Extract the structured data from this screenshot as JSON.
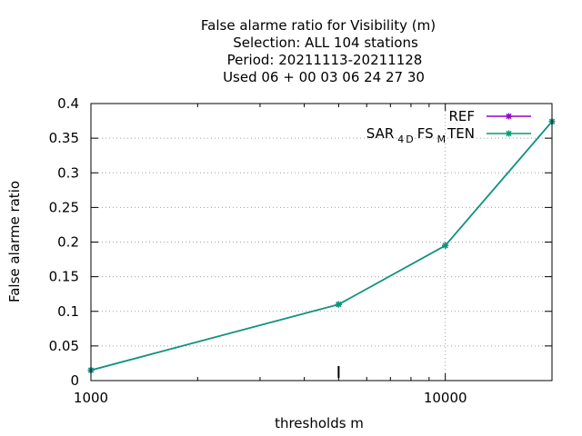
{
  "chart_data": {
    "type": "line",
    "title_lines": [
      "False alarme ratio  for Visibility (m)",
      "Selection: ALL    104 stations",
      "Period: 20211113-20211128",
      "Used  06 + 00 03 06 24 27 30"
    ],
    "xlabel": "thresholds m",
    "ylabel": "False alarme ratio",
    "x_scale": "log",
    "xlim": [
      1000,
      20000
    ],
    "ylim": [
      0,
      0.4
    ],
    "x_ticks": [
      {
        "value": 1000,
        "label": "1000"
      },
      {
        "value": 10000,
        "label": "10000"
      }
    ],
    "y_ticks": [
      {
        "value": 0,
        "label": "0"
      },
      {
        "value": 0.05,
        "label": "0.05"
      },
      {
        "value": 0.1,
        "label": "0.1"
      },
      {
        "value": 0.15,
        "label": "0.15"
      },
      {
        "value": 0.2,
        "label": "0.2"
      },
      {
        "value": 0.25,
        "label": "0.25"
      },
      {
        "value": 0.3,
        "label": "0.3"
      },
      {
        "value": 0.35,
        "label": "0.35"
      },
      {
        "value": 0.4,
        "label": "0.4"
      }
    ],
    "series": [
      {
        "name": "REF",
        "color": "#9400d3",
        "x": [
          1000,
          5000,
          10000,
          20000
        ],
        "values": [
          0.015,
          0.11,
          0.195,
          0.374
        ]
      },
      {
        "name": "SAR_4DFS_MTEN",
        "legend_parts": [
          "SAR",
          "4",
          "D",
          "FS",
          "M",
          "TEN"
        ],
        "color": "#009e73",
        "x": [
          1000,
          5000,
          10000,
          20000
        ],
        "values": [
          0.015,
          0.11,
          0.195,
          0.374
        ]
      }
    ]
  }
}
